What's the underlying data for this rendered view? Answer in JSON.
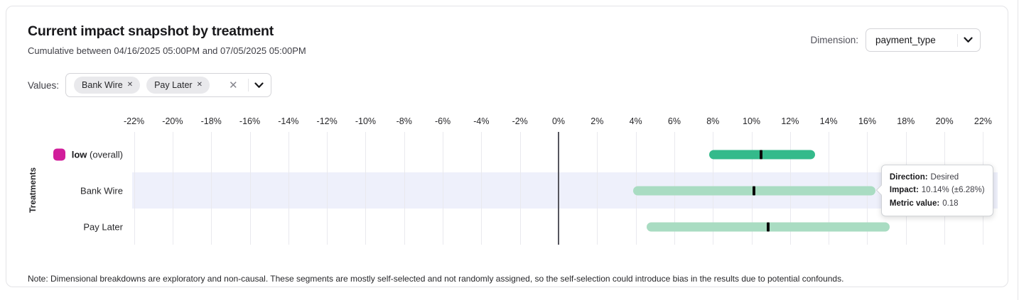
{
  "header": {
    "title": "Current impact snapshot by treatment",
    "subtitle": "Cumulative between 04/16/2025 05:00PM and 07/05/2025 05:00PM"
  },
  "dimension": {
    "label": "Dimension:",
    "value": "payment_type"
  },
  "values_filter": {
    "label": "Values:",
    "chips": [
      {
        "label": "Bank Wire"
      },
      {
        "label": "Pay Later"
      }
    ],
    "chip_remove_icon": "✕",
    "clear_icon": "✕"
  },
  "note": "Note: Dimensional breakdowns are exploratory and non-causal. These segments are mostly self-selected and not randomly assigned, so the self-selection could introduce bias in the results due to potential confounds.",
  "chart_data": {
    "type": "bar",
    "subtype": "horizontal-interval",
    "title": "Current impact snapshot by treatment",
    "ylabel": "Treatments",
    "x_tick_labels": [
      "-22%",
      "-20%",
      "-18%",
      "-16%",
      "-14%",
      "-12%",
      "-10%",
      "-8%",
      "-6%",
      "-4%",
      "-2%",
      "0%",
      "2%",
      "4%",
      "6%",
      "8%",
      "10%",
      "12%",
      "14%",
      "16%",
      "18%",
      "20%",
      "22%"
    ],
    "xlim_pct": [
      -23,
      23
    ],
    "grid": true,
    "colors": {
      "overall_bar": "#34ba8b",
      "segment_bar": "#a9dcc2",
      "marker": "#0b0b0b",
      "legend_swatch": "#d11e9b",
      "row_highlight": "#eef0fb"
    },
    "rows": [
      {
        "label": "low",
        "suffix": "(overall)",
        "impact_pct": 10.5,
        "ci_low_pct": 7.8,
        "ci_high_pct": 13.3,
        "bar_color": "#34ba8b",
        "highlighted": false,
        "has_swatch": true
      },
      {
        "label": "Bank Wire",
        "suffix": "",
        "impact_pct": 10.14,
        "ci_low_pct": 3.86,
        "ci_high_pct": 16.42,
        "bar_color": "#a9dcc2",
        "highlighted": true,
        "has_swatch": false
      },
      {
        "label": "Pay Later",
        "suffix": "",
        "impact_pct": 10.85,
        "ci_low_pct": 4.55,
        "ci_high_pct": 17.15,
        "bar_color": "#a9dcc2",
        "highlighted": false,
        "has_swatch": false
      }
    ],
    "tooltip": {
      "anchor_row": "Bank Wire",
      "lines": [
        {
          "label": "Direction:",
          "value": "Desired"
        },
        {
          "label": "Impact:",
          "value": "10.14% (±6.28%)"
        },
        {
          "label": "Metric value:",
          "value": "0.18"
        }
      ]
    }
  }
}
